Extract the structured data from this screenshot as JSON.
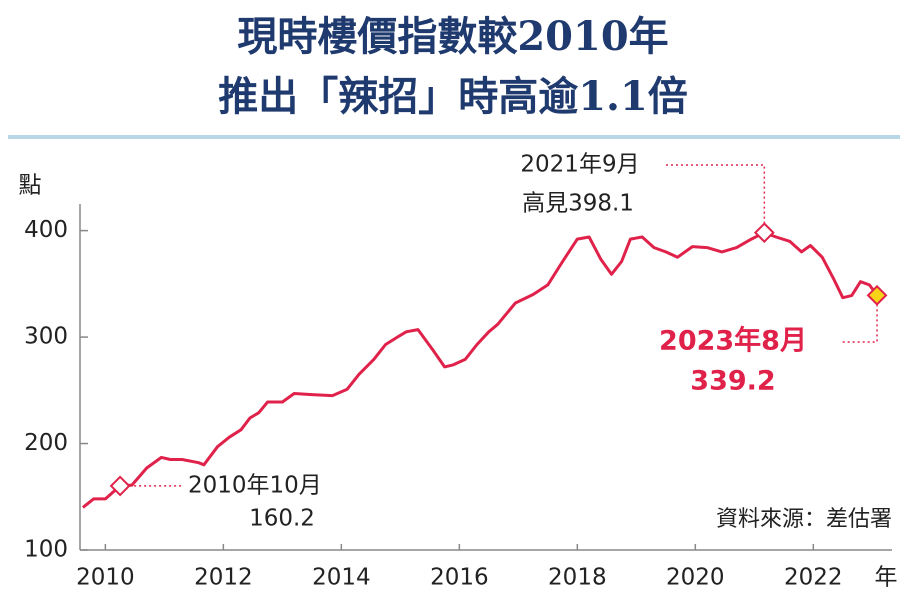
{
  "chart_data": {
    "type": "line",
    "title": [
      "現時樓價指數較2010年",
      "推出「辣招」時高逾1.1倍"
    ],
    "y_unit": "點",
    "x_unit": "年",
    "source": "資料來源：差估署",
    "annotations": [
      "2010年10月",
      "2021年9月",
      "高見398.1",
      "2023年8月"
    ],
    "xlim": [
      2010.07,
      2023.8
    ],
    "ylim": [
      100,
      425
    ],
    "xticks": [
      {
        "value": 2010.5,
        "label": "2010"
      },
      {
        "value": 2012.5,
        "label": "2012"
      },
      {
        "value": 2014.5,
        "label": "2014"
      },
      {
        "value": 2016.5,
        "label": "2016"
      },
      {
        "value": 2018.5,
        "label": "2018"
      },
      {
        "value": 2020.5,
        "label": "2020"
      },
      {
        "value": 2022.5,
        "label": "2022"
      }
    ],
    "yticks": [
      100,
      200,
      300,
      400
    ],
    "x": [
      2010.12,
      2010.3,
      2010.5,
      2010.75,
      2010.95,
      2011.2,
      2011.45,
      2011.6,
      2011.8,
      2012.08,
      2012.17,
      2012.4,
      2012.6,
      2012.8,
      2012.95,
      2013.1,
      2013.25,
      2013.5,
      2013.7,
      2014.0,
      2014.35,
      2014.6,
      2014.8,
      2015.05,
      2015.25,
      2015.45,
      2015.6,
      2015.8,
      2016.05,
      2016.25,
      2016.4,
      2016.6,
      2016.8,
      2017.0,
      2017.15,
      2017.45,
      2017.75,
      2018.0,
      2018.25,
      2018.5,
      2018.7,
      2018.9,
      2019.08,
      2019.25,
      2019.4,
      2019.6,
      2019.8,
      2020.0,
      2020.2,
      2020.45,
      2020.7,
      2020.95,
      2021.2,
      2021.45,
      2021.67,
      2021.87,
      2022.1,
      2022.3,
      2022.45,
      2022.65,
      2022.85,
      2023.0,
      2023.15,
      2023.3,
      2023.45,
      2023.58
    ],
    "series": [
      {
        "name": "樓價指數",
        "color": "#e0224a",
        "values": [
          140,
          148,
          148,
          160.2,
          161,
          177,
          187,
          185,
          185,
          182,
          180,
          197,
          206,
          213,
          224,
          229,
          239,
          239,
          247,
          246,
          245,
          251,
          265,
          279,
          293,
          300,
          305,
          307,
          288,
          272,
          274,
          279,
          293,
          305,
          312,
          332,
          340,
          349,
          371,
          392,
          394,
          373,
          359,
          371,
          392,
          394,
          384,
          380,
          375,
          385,
          384,
          380,
          384,
          392,
          398.1,
          394,
          390,
          380,
          386,
          375,
          354,
          337,
          339,
          352,
          349,
          339.2
        ]
      }
    ]
  }
}
